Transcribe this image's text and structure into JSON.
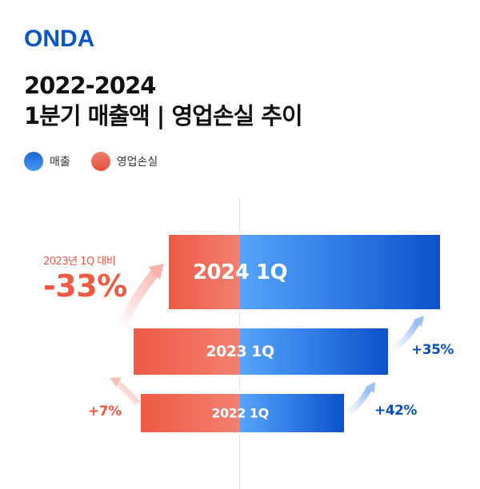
{
  "logo": "ONDA",
  "title": {
    "line1": "2022-2024",
    "line2": "1분기 매출액 | 영업손실 추이"
  },
  "legend": [
    {
      "label": "매출",
      "color": "#2f7be8"
    },
    {
      "label": "영업손실",
      "color": "#ef5a45"
    }
  ],
  "chart_data": {
    "type": "bar",
    "orientation": "diverging-horizontal",
    "categories": [
      "2024 1Q",
      "2023 1Q",
      "2022 1Q"
    ],
    "series": [
      {
        "name": "매출",
        "values": [
          192,
          142,
          100
        ],
        "color": "#0b52cc"
      },
      {
        "name": "영업손실",
        "values": [
          72,
          107,
          100
        ],
        "color": "#ef5a45"
      }
    ],
    "annotations": {
      "loss_compare_label": "2023년 1Q 대비",
      "loss_2024_change": "-33%",
      "loss_2023_change": "+7%",
      "revenue_2024_change": "+35%",
      "revenue_2023_change": "+42%"
    }
  }
}
